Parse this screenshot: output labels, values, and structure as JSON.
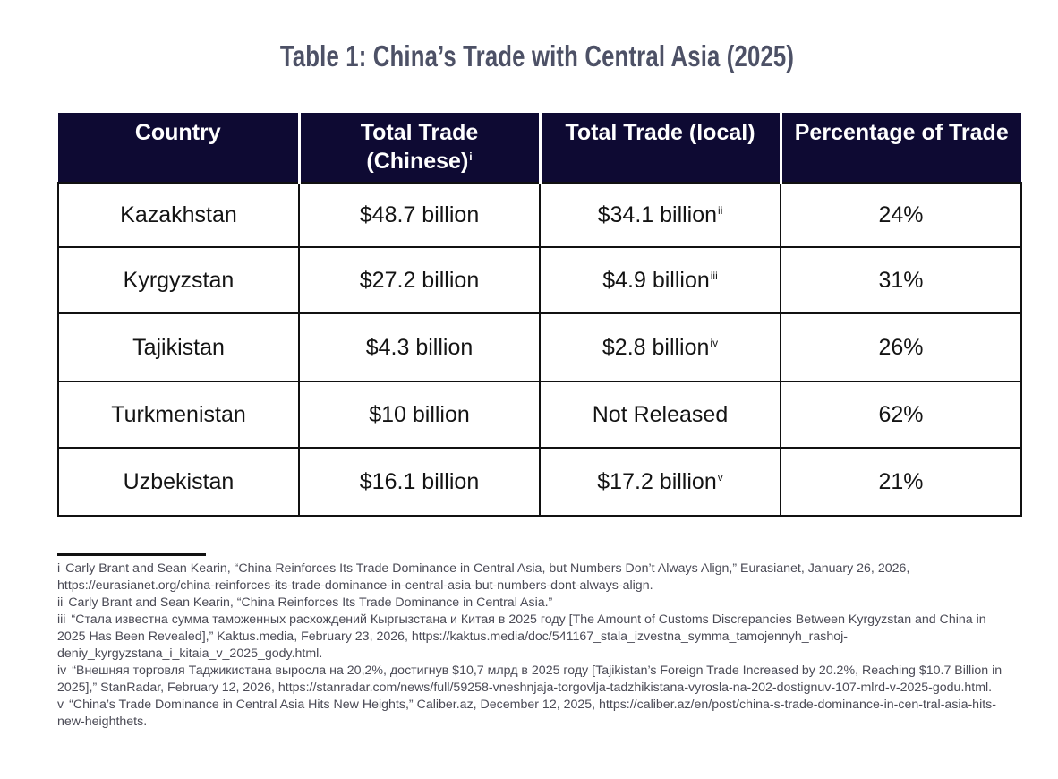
{
  "title": "Table 1: China’s Trade with Central Asia (2025)",
  "table": {
    "headers": [
      {
        "text": "Country",
        "note": ""
      },
      {
        "text": "Total Trade (Chinese)",
        "note": "i"
      },
      {
        "text": "Total Trade (local)",
        "note": ""
      },
      {
        "text": "Percentage of Trade",
        "note": ""
      }
    ],
    "rows": [
      {
        "country": "Kazakhstan",
        "chinese": "$48.7 billion",
        "local": "$34.1 billion",
        "local_note": "ii",
        "percent": "24%"
      },
      {
        "country": "Kyrgyzstan",
        "chinese": "$27.2 billion",
        "local": "$4.9 billion",
        "local_note": "iii",
        "percent": "31%"
      },
      {
        "country": "Tajikistan",
        "chinese": "$4.3 billion",
        "local": "$2.8 billion",
        "local_note": "iv",
        "percent": "26%"
      },
      {
        "country": "Turkmenistan",
        "chinese": "$10 billion",
        "local": "Not Released",
        "local_note": "",
        "percent": "62%"
      },
      {
        "country": "Uzbekistan",
        "chinese": "$16.1 billion",
        "local": "$17.2 billion",
        "local_note": "v",
        "percent": "21%"
      }
    ]
  },
  "footnotes": [
    {
      "marker": "i",
      "text": "Carly Brant and Sean Kearin, “China Reinforces Its Trade Dominance in Central Asia, but Numbers Don’t Always Align,” Eurasianet, January 26, 2026, https://eurasianet.org/china-reinforces-its-trade-dominance-in-central-asia-but-numbers-dont-always-align."
    },
    {
      "marker": "ii",
      "text": "Carly Brant and Sean Kearin, “China Reinforces Its Trade Dominance in Central Asia.”"
    },
    {
      "marker": "iii",
      "text": "“Стала известна сумма таможенных расхождений Кыргызстана и Китая в 2025 году [The Amount of Customs Discrepancies Between Kyrgyzstan and China in 2025 Has Been Revealed],” Kaktus.media, February 23, 2026, https://kaktus.media/doc/541167_stala_izvestna_symma_tamojennyh_rashoj-deniy_kyrgyzstana_i_kitaia_v_2025_gody.html."
    },
    {
      "marker": "iv",
      "text": "“Внешняя торговля Таджикистана выросла на 20,2%, достигнув $10,7 млрд в 2025 году [Tajikistan’s Foreign Trade Increased by 20.2%, Reaching $10.7 Billion in 2025],” StanRadar, February 12, 2026, https://stanradar.com/news/full/59258-vneshnjaja-torgovlja-tadzhikistana-vyrosla-na-202-dostignuv-107-mlrd-v-2025-godu.html."
    },
    {
      "marker": "v",
      "text": "“China’s Trade Dominance in Central Asia Hits New Heights,” Caliber.az, December 12, 2025, https://caliber.az/en/post/china-s-trade-dominance-in-cen-tral-asia-hits-new-heighthets."
    }
  ]
}
